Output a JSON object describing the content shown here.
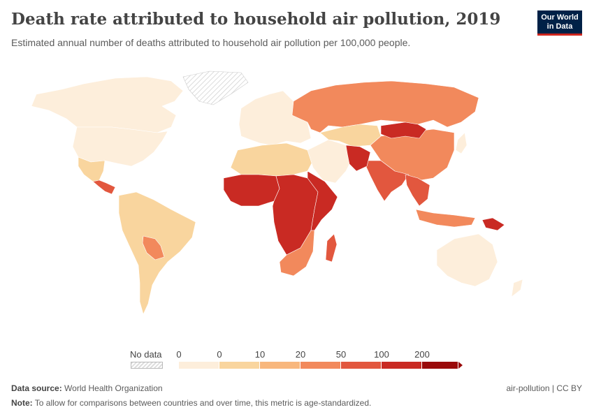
{
  "title": "Death rate attributed to household air pollution, 2019",
  "subtitle": "Estimated annual number of deaths attributed to household air pollution per 100,000 people.",
  "logo": {
    "line1": "Our World",
    "line2": "in Data"
  },
  "legend": {
    "no_data_label": "No data",
    "ticks": [
      "0",
      "0",
      "10",
      "20",
      "50",
      "100",
      "200"
    ],
    "colors": [
      "#fdeedb",
      "#f9d59e",
      "#f8b77d",
      "#f2895c",
      "#e2573e",
      "#c92a23",
      "#9a0a0a"
    ]
  },
  "footer": {
    "source_label": "Data source:",
    "source_value": "World Health Organization",
    "note_label": "Note:",
    "note_value": "To allow for comparisons between countries and over time, this metric is age-standardized.",
    "right_label": "air-pollution | CC BY"
  },
  "regions": [
    {
      "name": "Canada",
      "color": "#fdeedb"
    },
    {
      "name": "United States",
      "color": "#fdeedb"
    },
    {
      "name": "Greenland",
      "color": "nodata"
    },
    {
      "name": "Mexico",
      "color": "#f9d59e"
    },
    {
      "name": "Central America",
      "color": "#e2573e"
    },
    {
      "name": "South America",
      "color": "#f9d59e"
    },
    {
      "name": "Bolivia",
      "color": "#f2895c"
    },
    {
      "name": "Europe",
      "color": "#fdeedb"
    },
    {
      "name": "Russia",
      "color": "#f2895c"
    },
    {
      "name": "North Africa",
      "color": "#f9d59e"
    },
    {
      "name": "West Africa",
      "color": "#c92a23"
    },
    {
      "name": "Central Africa",
      "color": "#c92a23"
    },
    {
      "name": "East Africa",
      "color": "#c92a23"
    },
    {
      "name": "Southern Africa",
      "color": "#f2895c"
    },
    {
      "name": "Madagascar",
      "color": "#e2573e"
    },
    {
      "name": "Middle East",
      "color": "#fdeedb"
    },
    {
      "name": "Central Asia",
      "color": "#f9d59e"
    },
    {
      "name": "China",
      "color": "#f2895c"
    },
    {
      "name": "Mongolia",
      "color": "#c92a23"
    },
    {
      "name": "India",
      "color": "#e2573e"
    },
    {
      "name": "Pakistan",
      "color": "#c92a23"
    },
    {
      "name": "Southeast Asia",
      "color": "#e2573e"
    },
    {
      "name": "Indonesia",
      "color": "#f2895c"
    },
    {
      "name": "Papua New Guinea",
      "color": "#c92a23"
    },
    {
      "name": "Australia",
      "color": "#fdeedb"
    },
    {
      "name": "New Zealand",
      "color": "#fdeedb"
    },
    {
      "name": "Japan",
      "color": "#fdeedb"
    }
  ]
}
